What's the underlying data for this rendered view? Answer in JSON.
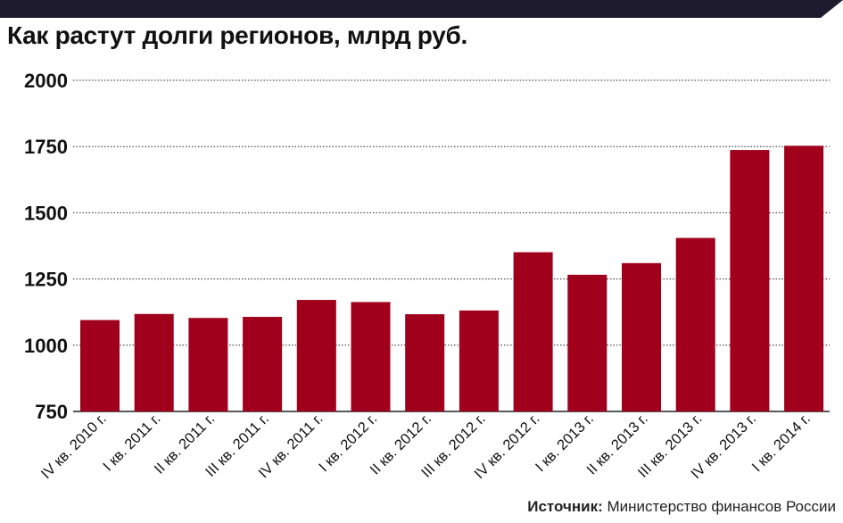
{
  "colors": {
    "banner": "#1f1b2e",
    "bar": "#a0001c",
    "text": "#111111",
    "grid": "#222222"
  },
  "source": {
    "label": "Источник:",
    "text": "Министерство финансов России"
  },
  "chart_data": {
    "type": "bar",
    "title": "Как растут долги регионов, млрд руб.",
    "xlabel": "",
    "ylabel": "",
    "ylim": [
      750,
      2000
    ],
    "yticks": [
      750,
      1000,
      1250,
      1500,
      1750,
      2000
    ],
    "grid": true,
    "categories": [
      "IV кв. 2010 г.",
      "I кв. 2011 г.",
      "II кв. 2011 г.",
      "III кв. 2011 г.",
      "IV кв. 2011 г.",
      "I кв. 2012 г.",
      "II кв. 2012 г.",
      "III кв. 2012 г.",
      "IV кв. 2012 г.",
      "I кв. 2013 г.",
      "II кв. 2013 г.",
      "III кв. 2013 г.",
      "IV кв. 2013 г.",
      "I кв. 2014 г."
    ],
    "values": [
      1095,
      1118,
      1103,
      1107,
      1171,
      1163,
      1117,
      1131,
      1351,
      1266,
      1310,
      1405,
      1737,
      1753
    ]
  }
}
